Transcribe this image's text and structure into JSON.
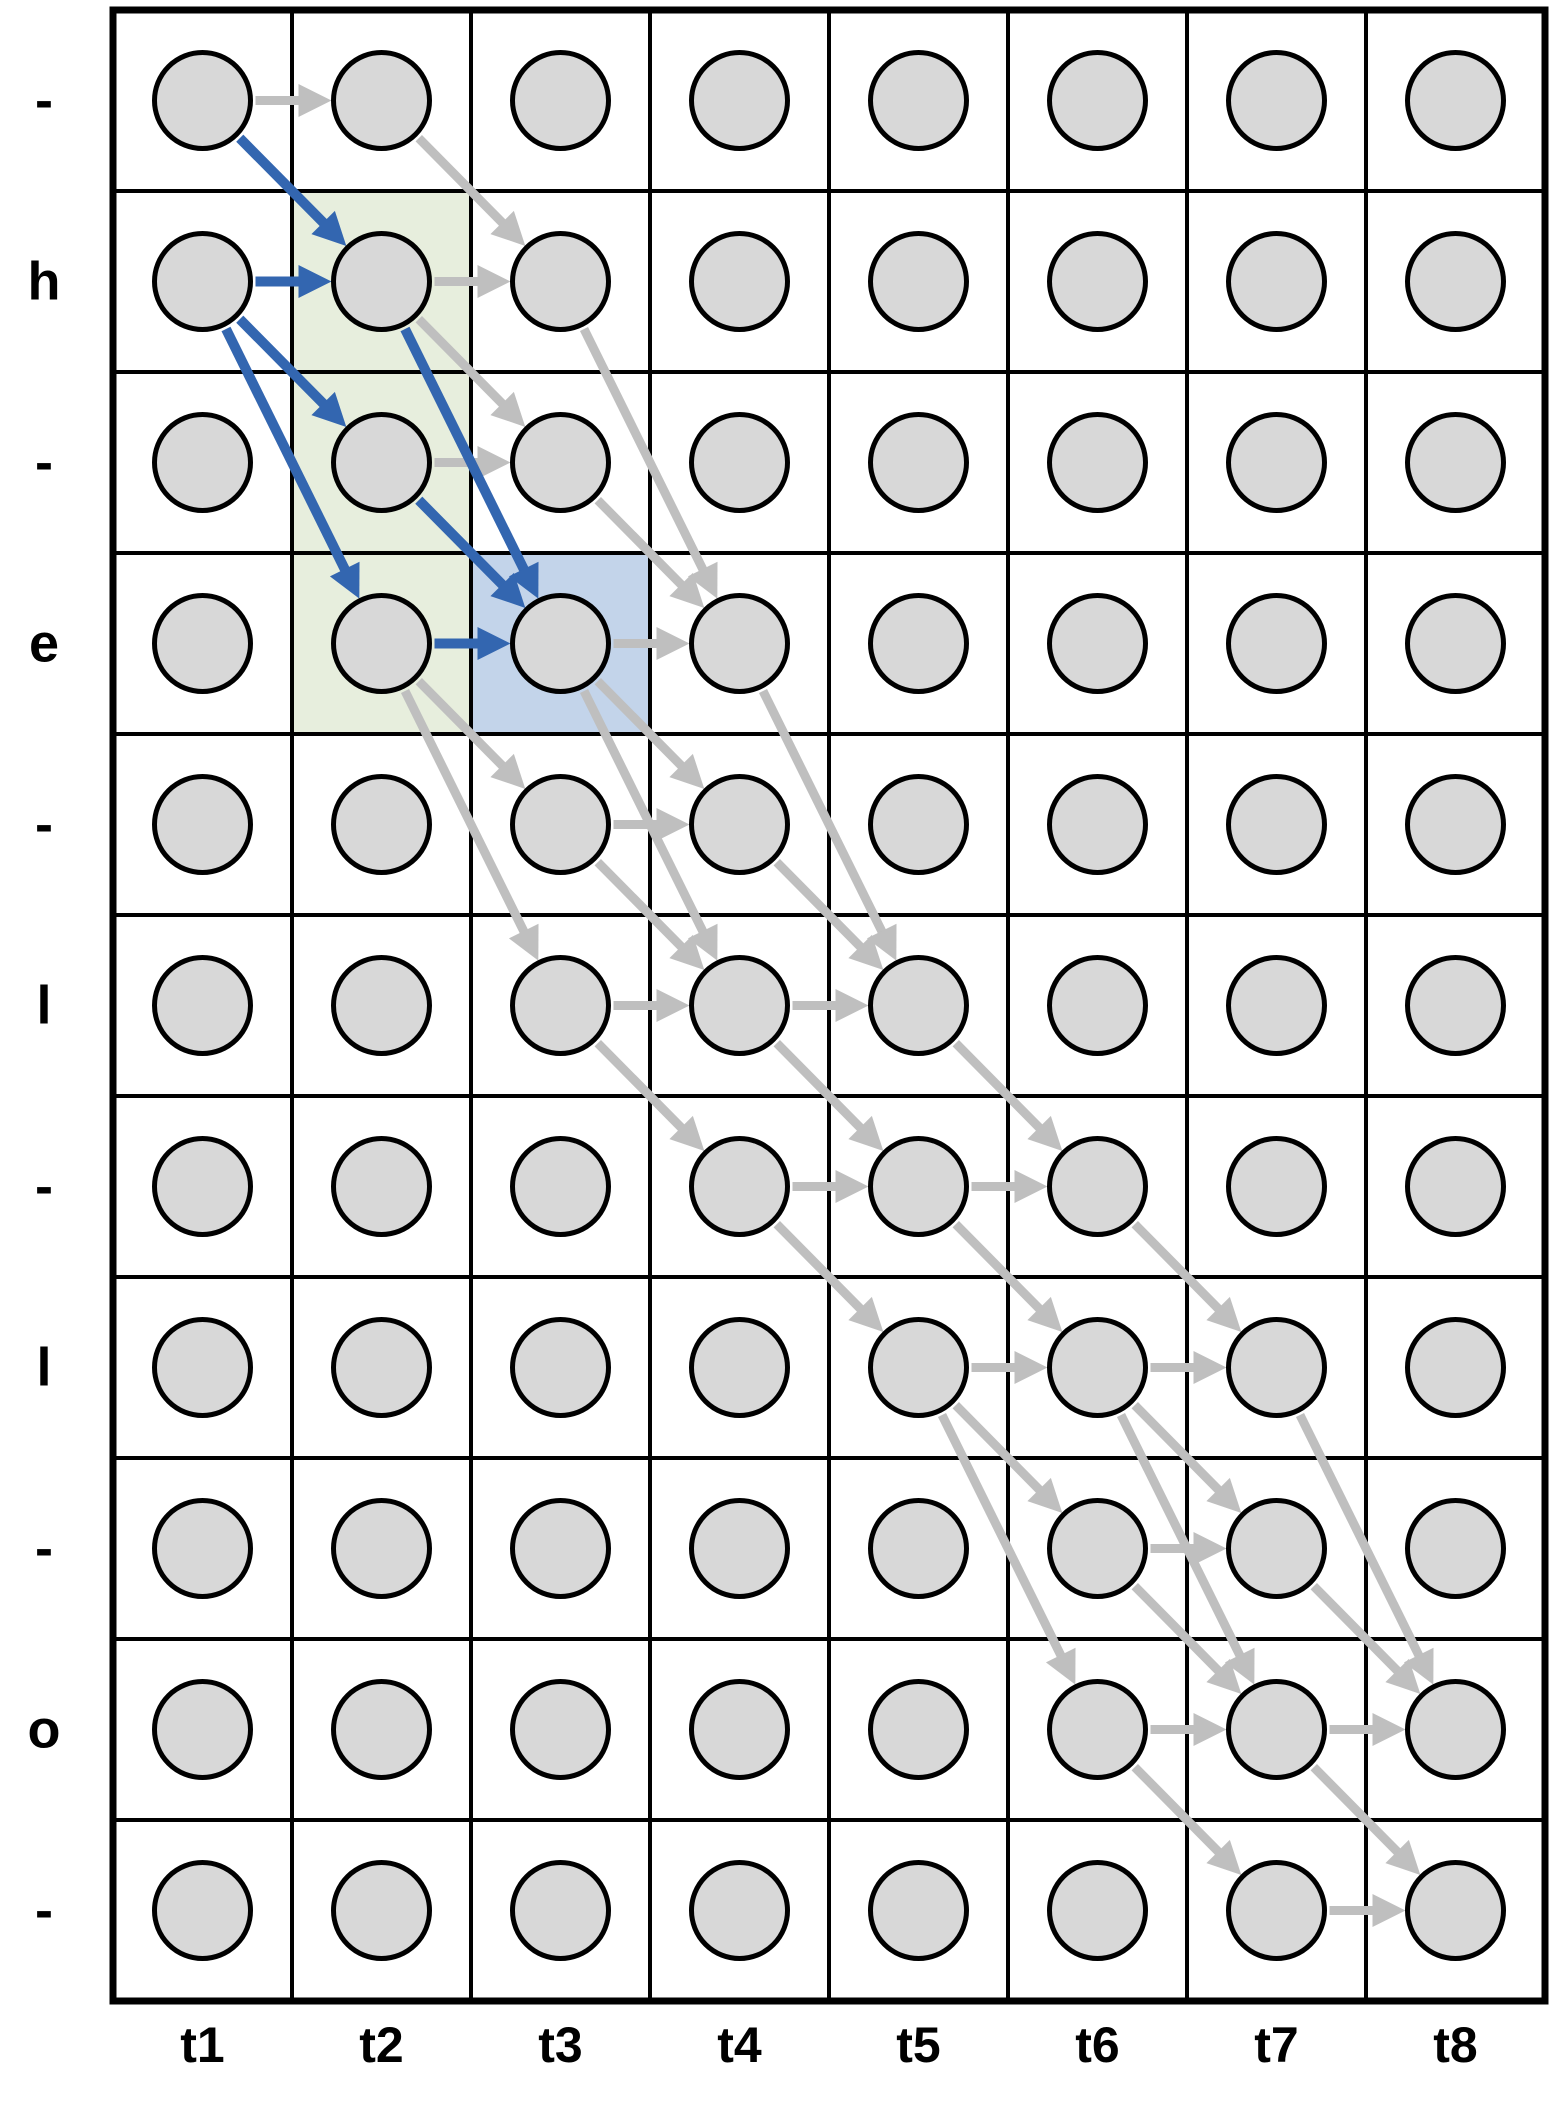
{
  "diagram": {
    "title": "ctc-alignment-lattice",
    "row_labels": [
      "-",
      "h",
      "-",
      "e",
      "-",
      "l",
      "-",
      "l",
      "-",
      "o",
      "-"
    ],
    "col_labels": [
      "t1",
      "t2",
      "t3",
      "t4",
      "t5",
      "t6",
      "t7",
      "t8"
    ],
    "colors": {
      "node_fill": "#d8d8d8",
      "node_stroke": "#000000",
      "grid_line": "#000000",
      "gray_arrow": "#bfbfbf",
      "blue_arrow": "#3366b0",
      "green_highlight": "#e7eedd",
      "blue_highlight": "#c3d4ea",
      "label_color": "#000000"
    },
    "highlights": {
      "green_cells": [
        {
          "row": 2,
          "col": 2
        },
        {
          "row": 3,
          "col": 2
        },
        {
          "row": 4,
          "col": 2
        }
      ],
      "blue_cells": [
        {
          "row": 4,
          "col": 3
        }
      ]
    },
    "arrows": {
      "blue": [
        [
          1,
          1,
          2,
          2
        ],
        [
          2,
          1,
          2,
          2
        ],
        [
          2,
          1,
          3,
          2
        ],
        [
          2,
          1,
          4,
          2
        ],
        [
          2,
          2,
          4,
          3
        ],
        [
          3,
          2,
          4,
          3
        ],
        [
          4,
          2,
          4,
          3
        ]
      ],
      "gray": [
        [
          1,
          1,
          1,
          2
        ],
        [
          1,
          2,
          2,
          3
        ],
        [
          2,
          2,
          2,
          3
        ],
        [
          2,
          2,
          3,
          3
        ],
        [
          3,
          2,
          3,
          3
        ],
        [
          4,
          2,
          5,
          3
        ],
        [
          4,
          2,
          6,
          3
        ],
        [
          2,
          3,
          4,
          4
        ],
        [
          3,
          3,
          4,
          4
        ],
        [
          4,
          3,
          4,
          4
        ],
        [
          4,
          3,
          5,
          4
        ],
        [
          4,
          3,
          6,
          4
        ],
        [
          5,
          3,
          5,
          4
        ],
        [
          5,
          3,
          6,
          4
        ],
        [
          6,
          3,
          6,
          4
        ],
        [
          6,
          3,
          7,
          4
        ],
        [
          4,
          4,
          6,
          5
        ],
        [
          5,
          4,
          6,
          5
        ],
        [
          6,
          4,
          6,
          5
        ],
        [
          6,
          4,
          7,
          5
        ],
        [
          7,
          4,
          7,
          5
        ],
        [
          7,
          4,
          8,
          5
        ],
        [
          6,
          5,
          7,
          6
        ],
        [
          7,
          5,
          7,
          6
        ],
        [
          7,
          5,
          8,
          6
        ],
        [
          8,
          5,
          8,
          6
        ],
        [
          8,
          5,
          9,
          6
        ],
        [
          8,
          5,
          10,
          6
        ],
        [
          7,
          6,
          8,
          7
        ],
        [
          8,
          6,
          8,
          7
        ],
        [
          8,
          6,
          9,
          7
        ],
        [
          8,
          6,
          10,
          7
        ],
        [
          9,
          6,
          9,
          7
        ],
        [
          9,
          6,
          10,
          7
        ],
        [
          10,
          6,
          10,
          7
        ],
        [
          10,
          6,
          11,
          7
        ],
        [
          8,
          7,
          10,
          8
        ],
        [
          9,
          7,
          10,
          8
        ],
        [
          10,
          7,
          10,
          8
        ],
        [
          10,
          7,
          11,
          8
        ],
        [
          11,
          7,
          11,
          8
        ]
      ]
    }
  }
}
